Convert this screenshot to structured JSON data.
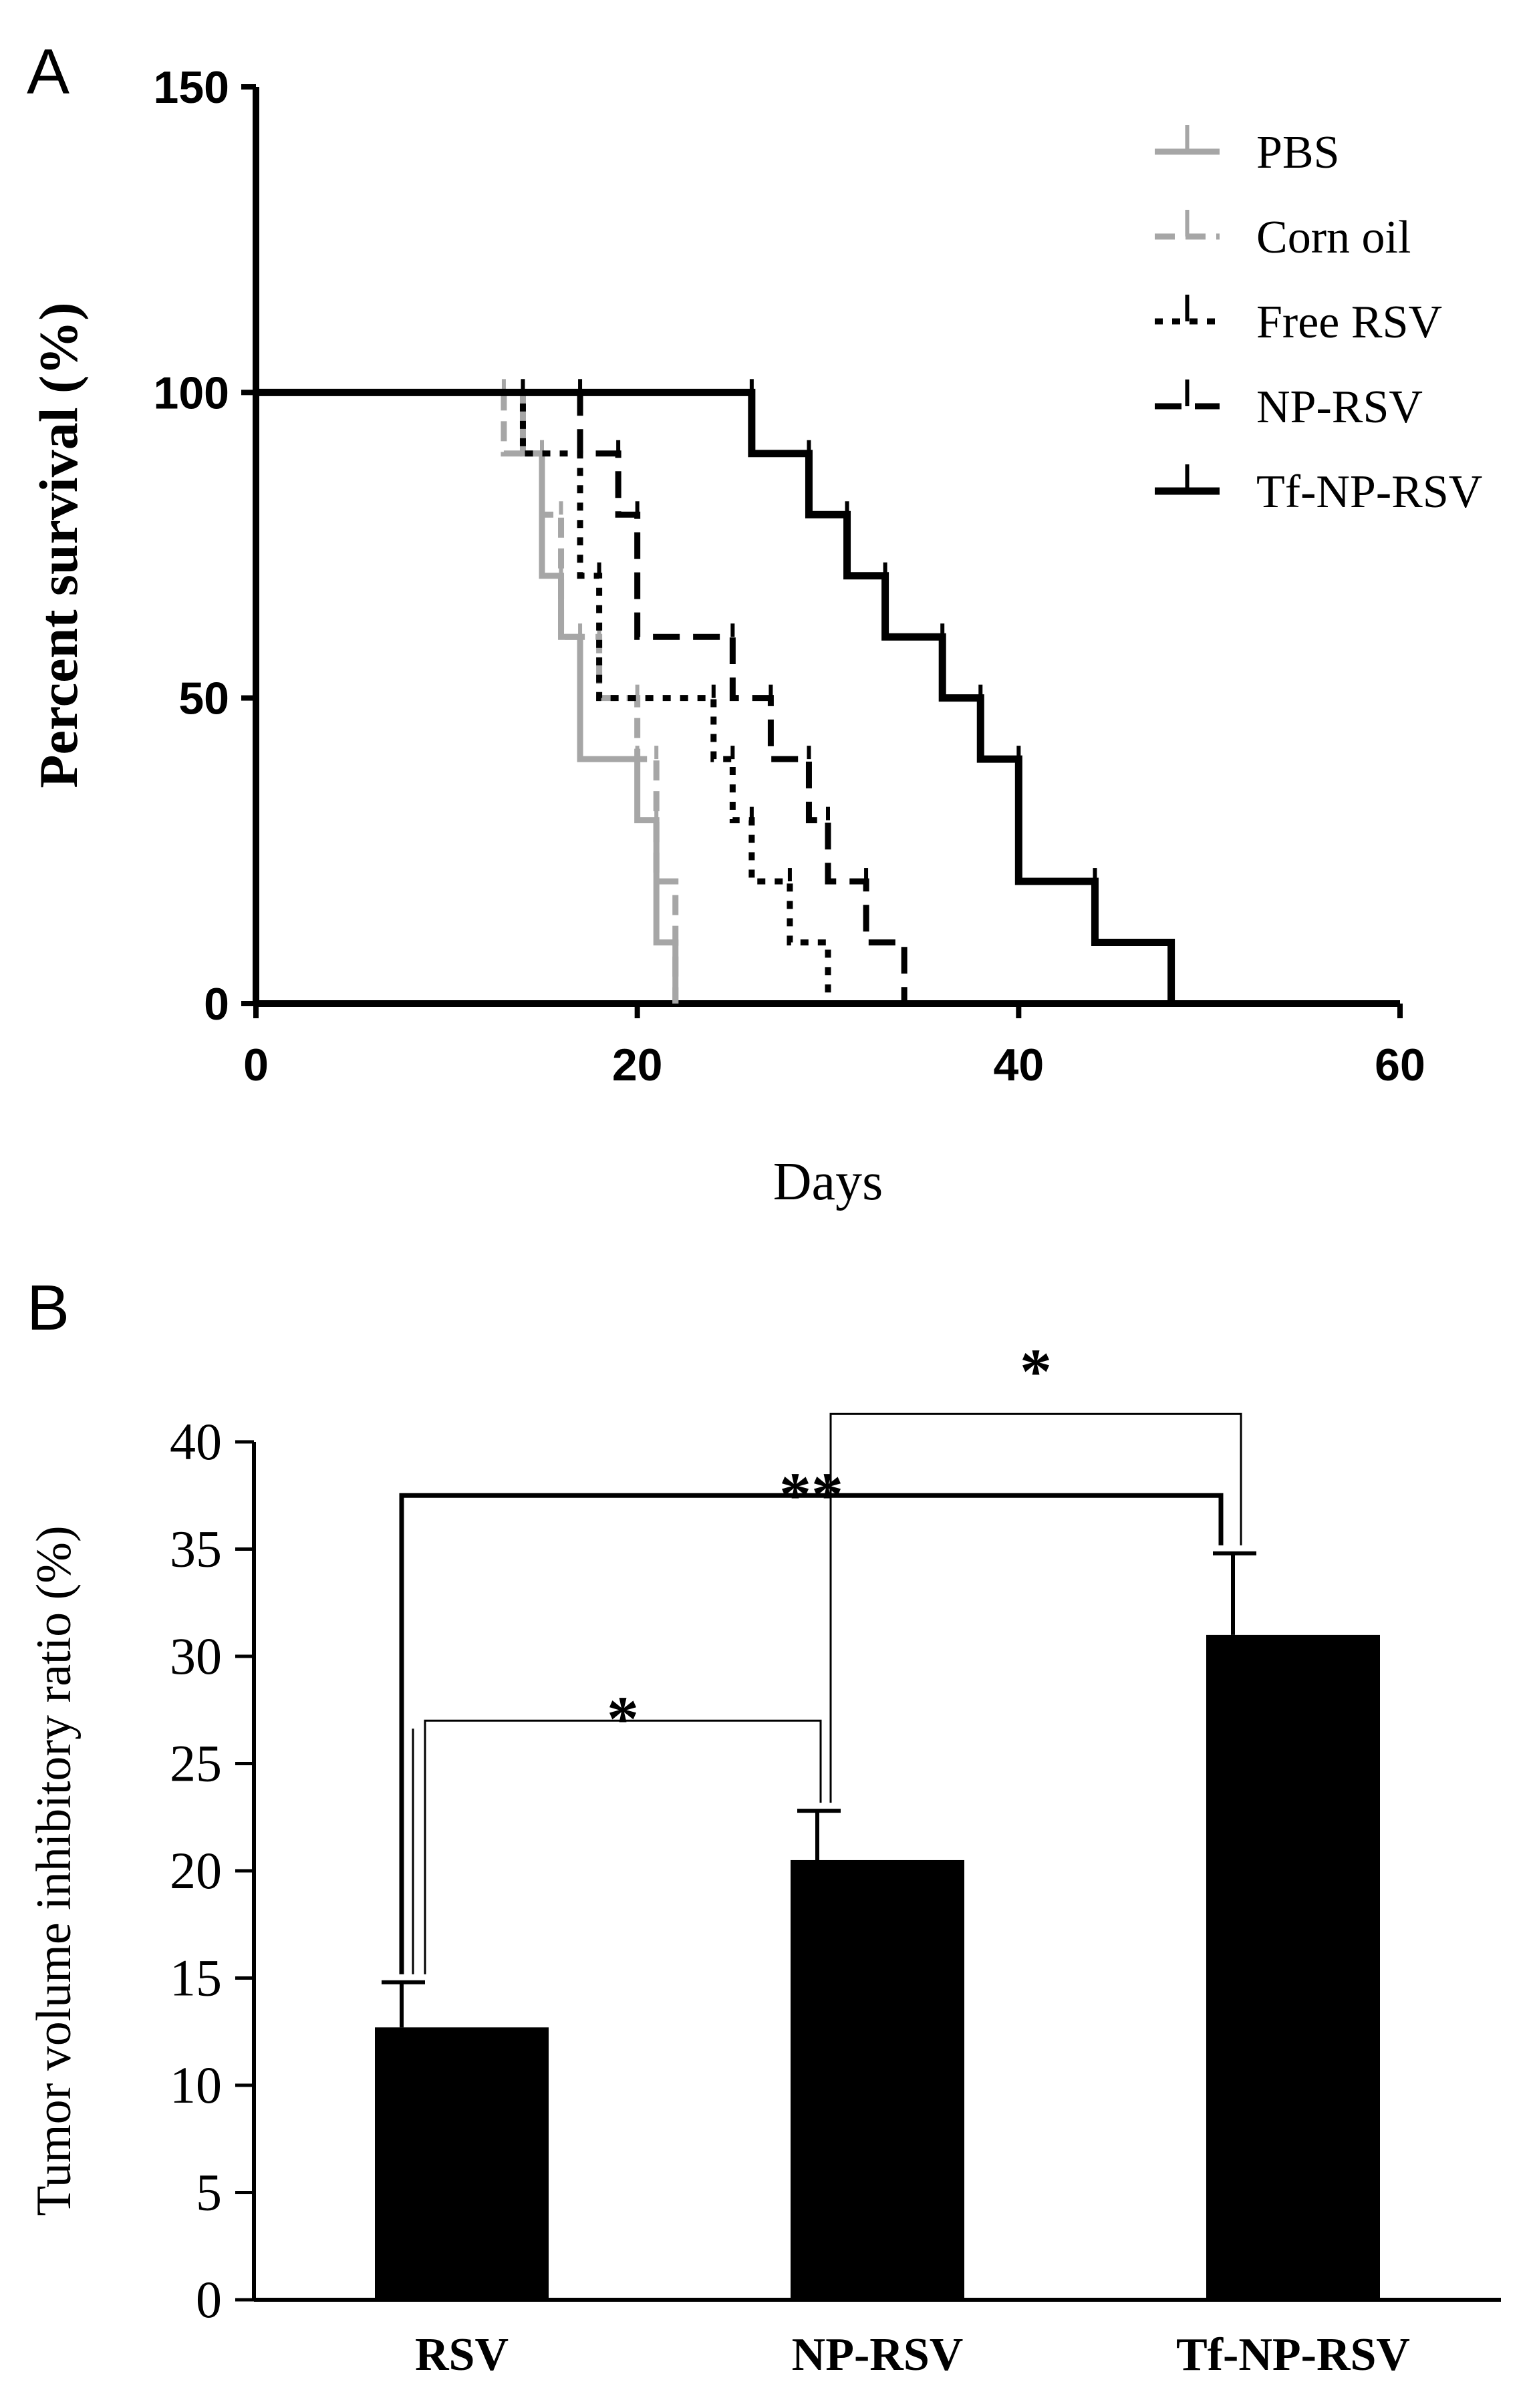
{
  "chart_data": [
    {
      "panel": "A",
      "type": "line",
      "step": true,
      "xlabel": "Days",
      "ylabel": "Percent survival (%)",
      "xlim": [
        0,
        60
      ],
      "ylim": [
        0,
        150
      ],
      "xticks": [
        "0",
        "20",
        "40",
        "60"
      ],
      "yticks": [
        "0",
        "50",
        "100",
        "150"
      ],
      "legend_position": "top-right",
      "grid": false,
      "series": [
        {
          "name": "PBS",
          "color": "#a6a6a6",
          "dash": "solid",
          "x": [
            0,
            14,
            15,
            16,
            17,
            20,
            21,
            22
          ],
          "y": [
            100,
            90,
            70,
            60,
            40,
            30,
            10,
            0
          ]
        },
        {
          "name": "Corn oil",
          "color": "#a6a6a6",
          "dash": "dash",
          "x": [
            0,
            13,
            15,
            16,
            18,
            20,
            21,
            22
          ],
          "y": [
            100,
            90,
            80,
            60,
            50,
            40,
            20,
            0
          ]
        },
        {
          "name": "Free RSV",
          "color": "#000000",
          "dash": "dot",
          "x": [
            0,
            14,
            17,
            18,
            24,
            25,
            26,
            28,
            30
          ],
          "y": [
            100,
            90,
            70,
            50,
            40,
            30,
            20,
            10,
            0
          ]
        },
        {
          "name": "NP-RSV",
          "color": "#000000",
          "dash": "longdash",
          "x": [
            0,
            17,
            19,
            20,
            25,
            27,
            29,
            30,
            32,
            34
          ],
          "y": [
            100,
            90,
            80,
            60,
            50,
            40,
            30,
            20,
            10,
            0
          ]
        },
        {
          "name": "Tf-NP-RSV",
          "color": "#000000",
          "dash": "solid",
          "x": [
            0,
            26,
            29,
            31,
            33,
            36,
            38,
            40,
            44,
            48
          ],
          "y": [
            100,
            90,
            80,
            70,
            60,
            50,
            40,
            20,
            10,
            0
          ]
        }
      ]
    },
    {
      "panel": "B",
      "type": "bar",
      "ylabel": "Tumor volume inhibitory ratio (%)",
      "xlabel": "",
      "ylim": [
        0,
        40
      ],
      "yticks": [
        "0",
        "5",
        "10",
        "15",
        "20",
        "25",
        "30",
        "35",
        "40"
      ],
      "categories": [
        "RSV",
        "NP-RSV",
        "Tf-NP-RSV"
      ],
      "values": [
        12.7,
        20.5,
        31.0
      ],
      "errors": [
        2.1,
        2.3,
        3.8
      ],
      "bar_color": "#000000",
      "grid": false,
      "significance": [
        {
          "from": "RSV",
          "to": "NP-RSV",
          "label": "*"
        },
        {
          "from": "RSV",
          "to": "Tf-NP-RSV",
          "label": "**"
        },
        {
          "from": "NP-RSV",
          "to": "Tf-NP-RSV",
          "label": "*"
        }
      ]
    }
  ]
}
